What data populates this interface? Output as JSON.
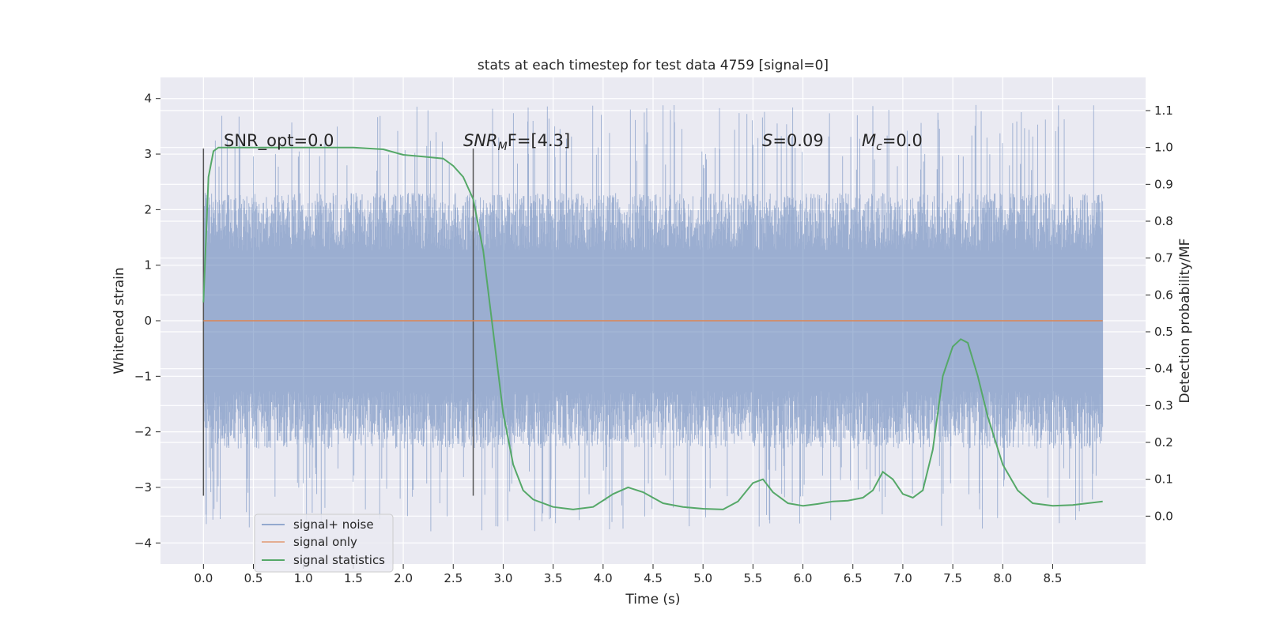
{
  "chart_data": {
    "type": "line",
    "title": "stats at each timestep for test data 4759 [signal=0]",
    "xlabel": "Time (s)",
    "ylabel": "Whitened strain",
    "y2label": "Detection probability/MF",
    "xlim": [
      -0.43,
      9.43
    ],
    "ylim": [
      -4.38,
      4.38
    ],
    "y2lim": [
      -0.13,
      1.19
    ],
    "x_ticks": [
      0.0,
      0.5,
      1.0,
      1.5,
      2.0,
      2.5,
      3.0,
      3.5,
      4.0,
      4.5,
      5.0,
      5.5,
      6.0,
      6.5,
      7.0,
      7.5,
      8.0,
      8.5
    ],
    "x_tick_labels": [
      "0.0",
      "0.5",
      "1.0",
      "1.5",
      "2.0",
      "2.5",
      "3.0",
      "3.5",
      "4.0",
      "4.5",
      "5.0",
      "5.5",
      "6.0",
      "6.5",
      "7.0",
      "7.5",
      "8.0",
      "8.5"
    ],
    "y_ticks": [
      -4,
      -3,
      -2,
      -1,
      0,
      1,
      2,
      3,
      4
    ],
    "y_tick_labels": [
      "−4",
      "−3",
      "−2",
      "−1",
      "0",
      "1",
      "2",
      "3",
      "4"
    ],
    "y2_ticks": [
      0.0,
      0.1,
      0.2,
      0.3,
      0.4,
      0.5,
      0.6,
      0.7,
      0.8,
      0.9,
      1.0,
      1.1
    ],
    "y2_tick_labels": [
      "0.0",
      "0.1",
      "0.2",
      "0.3",
      "0.4",
      "0.5",
      "0.6",
      "0.7",
      "0.8",
      "0.9",
      "1.0",
      "1.1"
    ],
    "grid": true,
    "legend_position": "lower-left",
    "series": [
      {
        "name": "signal+ noise",
        "axis": "left",
        "color": "#4c72b0",
        "kind": "dense noise trace",
        "x_range": [
          0.0,
          9.0
        ],
        "typical_amplitude": 2.3,
        "max_value": 3.95,
        "min_value": -3.9
      },
      {
        "name": "signal only",
        "axis": "left",
        "color": "#dd8452",
        "x_range": [
          0.0,
          9.0
        ],
        "values": [
          0.0,
          0.0
        ]
      },
      {
        "name": "signal statistics",
        "axis": "right",
        "color": "#55a868",
        "x": [
          0.0,
          0.05,
          0.1,
          0.15,
          0.2,
          0.3,
          0.5,
          1.0,
          1.5,
          1.8,
          2.0,
          2.2,
          2.4,
          2.5,
          2.6,
          2.7,
          2.8,
          2.9,
          3.0,
          3.1,
          3.2,
          3.3,
          3.5,
          3.7,
          3.9,
          4.1,
          4.25,
          4.4,
          4.6,
          4.8,
          5.0,
          5.2,
          5.35,
          5.5,
          5.6,
          5.7,
          5.85,
          6.0,
          6.15,
          6.3,
          6.45,
          6.6,
          6.7,
          6.8,
          6.9,
          7.0,
          7.1,
          7.2,
          7.3,
          7.4,
          7.5,
          7.58,
          7.65,
          7.75,
          7.85,
          8.0,
          8.15,
          8.3,
          8.5,
          8.7,
          9.0
        ],
        "values": [
          0.58,
          0.92,
          0.99,
          1.0,
          1.0,
          1.0,
          1.0,
          1.0,
          1.0,
          0.995,
          0.98,
          0.975,
          0.97,
          0.95,
          0.92,
          0.86,
          0.72,
          0.5,
          0.28,
          0.14,
          0.07,
          0.045,
          0.025,
          0.018,
          0.025,
          0.06,
          0.078,
          0.065,
          0.035,
          0.025,
          0.02,
          0.018,
          0.04,
          0.09,
          0.1,
          0.065,
          0.035,
          0.028,
          0.033,
          0.04,
          0.042,
          0.05,
          0.07,
          0.12,
          0.1,
          0.06,
          0.05,
          0.07,
          0.18,
          0.38,
          0.46,
          0.48,
          0.47,
          0.38,
          0.27,
          0.14,
          0.07,
          0.035,
          0.028,
          0.03,
          0.04
        ]
      }
    ],
    "vertical_markers": [
      0.0,
      2.7
    ],
    "annotations": {
      "snr_opt": "SNR_opt=0.0",
      "snr_mf_base": "SNR",
      "snr_mf_sub": "M",
      "snr_mf_rest": "F=[4.3]",
      "s_var": "S",
      "s_rest": "=0.09",
      "mc_var": "M",
      "mc_sub": "c",
      "mc_rest": "=0.0"
    }
  }
}
